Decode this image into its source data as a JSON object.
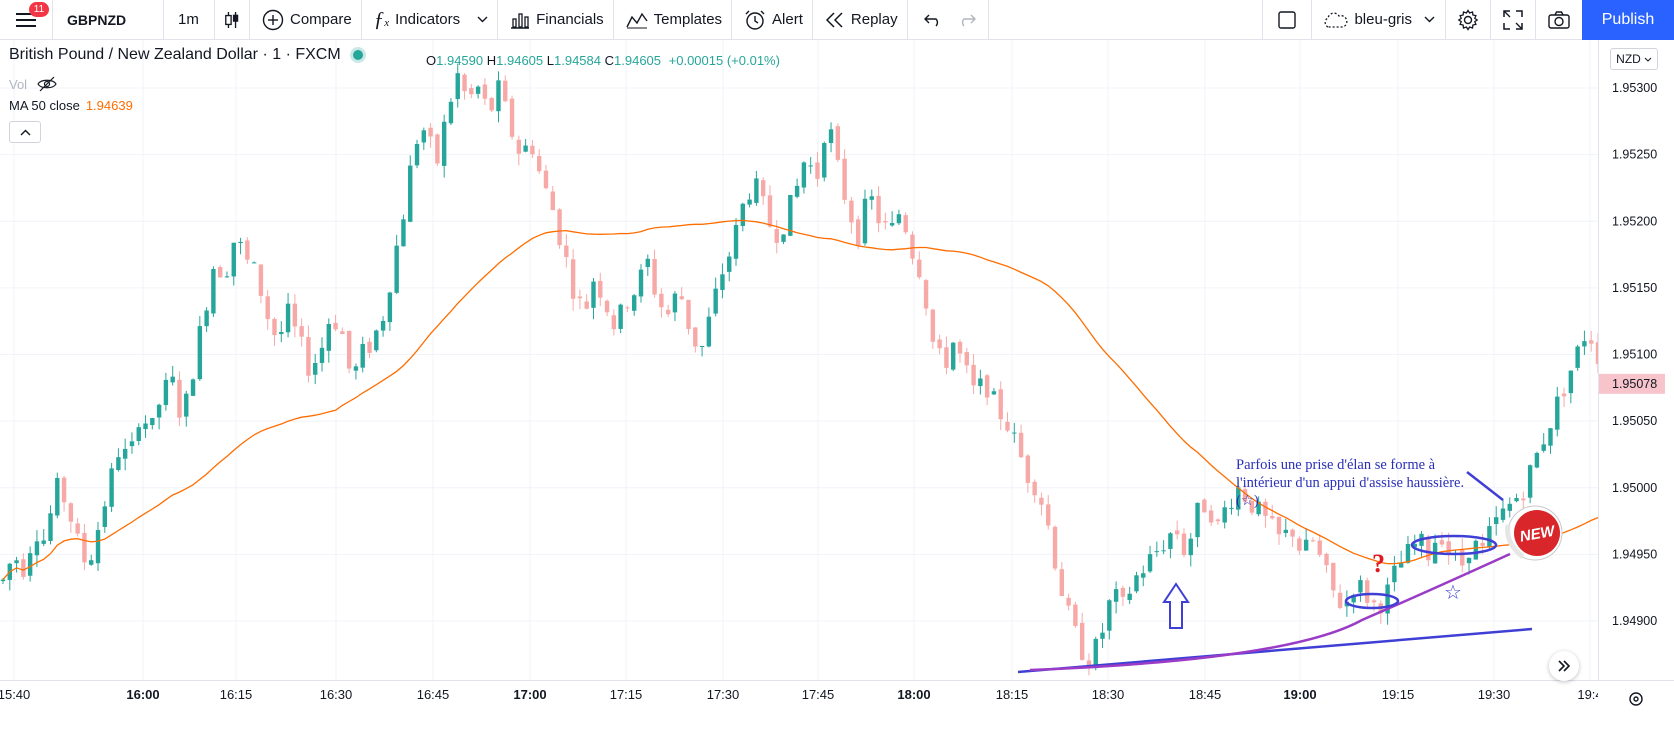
{
  "toolbar": {
    "notifications": "11",
    "symbol": "GBPNZD",
    "interval": "1m",
    "compare": "Compare",
    "indicators": "Indicators",
    "financials": "Financials",
    "templates": "Templates",
    "alert": "Alert",
    "replay": "Replay",
    "layout_name": "bleu-gris",
    "publish": "Publish"
  },
  "legend": {
    "title": "British Pound / New Zealand Dollar · 1 · FXCM",
    "o_label": "O",
    "o": "1.94590",
    "h_label": "H",
    "h": "1.94605",
    "l_label": "L",
    "l": "1.94584",
    "c_label": "C",
    "c": "1.94605",
    "change": "+0.00015 (+0.01%)",
    "vol": "Vol",
    "ma_label": "MA 50 close",
    "ma_value": "1.94639"
  },
  "currency": "NZD",
  "annotation": {
    "text": "Parfois une prise d'élan se forme à l'intérieur d'un appui d'assise haussière. (☆)",
    "question": "?",
    "star": "☆",
    "new_badge": "NEW"
  },
  "colors": {
    "up": "#26a69a",
    "down": "#ef5350",
    "ma": "#ff6d00",
    "trendline": "#3f3fd6",
    "curve": "#9b3cc6",
    "accent": "#2962ff"
  },
  "chart_data": {
    "type": "candlestick",
    "ylim": [
      1.9486,
      1.9534
    ],
    "y_ticks": [
      "1.95300",
      "1.95250",
      "1.95200",
      "1.95150",
      "1.95100",
      "1.95050",
      "1.95000",
      "1.94950",
      "1.94900"
    ],
    "y_tick_values": [
      1.953,
      1.9525,
      1.952,
      1.9515,
      1.951,
      1.9505,
      1.95,
      1.9495,
      1.949
    ],
    "x_ticks": [
      "15:40",
      "16:00",
      "16:15",
      "16:30",
      "16:45",
      "17:00",
      "17:15",
      "17:30",
      "17:45",
      "18:00",
      "18:15",
      "18:30",
      "18:45",
      "19:00",
      "19:15",
      "19:30",
      "19:4"
    ],
    "x_tick_bold": [
      false,
      true,
      false,
      false,
      false,
      true,
      false,
      false,
      false,
      true,
      false,
      false,
      false,
      true,
      false,
      false,
      false
    ],
    "last_price": "1.95078",
    "last_price_value": 1.95078,
    "ma_period": 50,
    "price_path": [
      1.9493,
      1.9495,
      1.9494,
      1.9497,
      1.9496,
      1.95,
      1.9499,
      1.9496,
      1.9494,
      1.9497,
      1.95,
      1.9503,
      1.9502,
      1.9506,
      1.9504,
      1.9507,
      1.9508,
      1.9505,
      1.9509,
      1.9513,
      1.9517,
      1.9516,
      1.9519,
      1.9517,
      1.9516,
      1.9513,
      1.9511,
      1.9513,
      1.9511,
      1.9509,
      1.951,
      1.9513,
      1.9512,
      1.9508,
      1.951,
      1.9511,
      1.9513,
      1.9517,
      1.9521,
      1.9526,
      1.9527,
      1.9524,
      1.9528,
      1.9531,
      1.9529,
      1.953,
      1.9528,
      1.953,
      1.9527,
      1.9525,
      1.9526,
      1.9523,
      1.9521,
      1.9518,
      1.9515,
      1.9513,
      1.9516,
      1.9514,
      1.9512,
      1.9514,
      1.9515,
      1.9517,
      1.9514,
      1.9513,
      1.9515,
      1.9512,
      1.951,
      1.9513,
      1.9516,
      1.9518,
      1.9521,
      1.9523,
      1.9521,
      1.9519,
      1.952,
      1.9522,
      1.9525,
      1.9523,
      1.9528,
      1.9524,
      1.9521,
      1.9519,
      1.9522,
      1.952,
      1.9519,
      1.9521,
      1.9518,
      1.9516,
      1.9511,
      1.9509,
      1.9511,
      1.9509,
      1.9507,
      1.9508,
      1.9506,
      1.9505,
      1.9503,
      1.9501,
      1.95,
      1.9497,
      1.9493,
      1.949,
      1.9488,
      1.9487,
      1.9489,
      1.9492,
      1.9491,
      1.9493,
      1.9494,
      1.9495,
      1.9496,
      1.9497,
      1.9495,
      1.9498,
      1.9499,
      1.9497,
      1.9499,
      1.95,
      1.9499,
      1.9498,
      1.9497,
      1.9496,
      1.9497,
      1.9495,
      1.9496,
      1.9494,
      1.9492,
      1.9491,
      1.9493,
      1.9492,
      1.9491,
      1.9492,
      1.9494,
      1.9495,
      1.9496,
      1.9495,
      1.9497,
      1.9495,
      1.9494,
      1.9496,
      1.9495,
      1.9497,
      1.9498,
      1.9499,
      1.95,
      1.9502,
      1.9504,
      1.9506,
      1.9508,
      1.951,
      1.9512,
      1.951
    ]
  }
}
